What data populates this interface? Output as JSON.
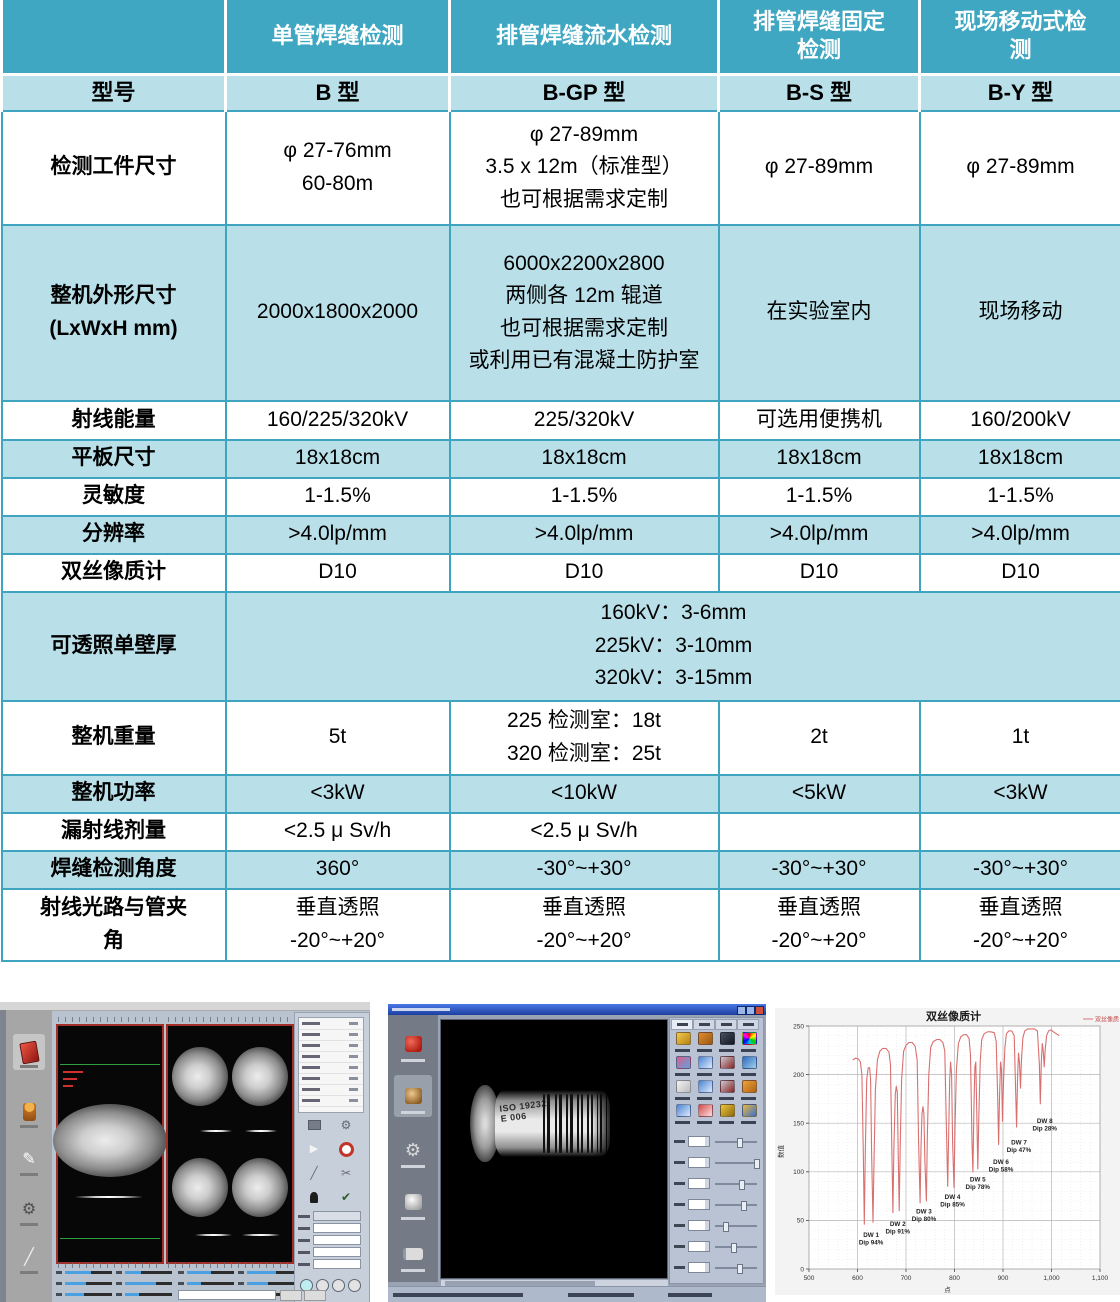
{
  "table": {
    "col_headers": [
      "",
      "单管焊缝检测",
      "排管焊缝流水检测",
      "排管焊缝固定\n检测",
      "现场移动式检\n测"
    ],
    "model_row": [
      "型号",
      "B 型",
      "B-GP 型",
      "B-S 型",
      "B-Y 型"
    ],
    "rows": [
      {
        "label": "检测工件尺寸",
        "c1": "φ 27-76mm\n60-80m",
        "c2": "φ 27-89mm\n3.5 x 12m（标准型）\n也可根据需求定制",
        "c3": "φ 27-89mm",
        "c4": "φ 27-89mm"
      },
      {
        "label": "整机外形尺寸\n(LxWxH mm)",
        "c1": "2000x1800x2000",
        "c2": "6000x2200x2800\n两侧各 12m 辊道\n也可根据需求定制\n或利用已有混凝土防护室",
        "c3": "在实验室内",
        "c4": "现场移动"
      },
      {
        "label": "射线能量",
        "c1": "160/225/320kV",
        "c2": "225/320kV",
        "c3": "可选用便携机",
        "c4": "160/200kV"
      },
      {
        "label": "平板尺寸",
        "c1": "18x18cm",
        "c2": "18x18cm",
        "c3": "18x18cm",
        "c4": "18x18cm"
      },
      {
        "label": "灵敏度",
        "c1": "1-1.5%",
        "c2": "1-1.5%",
        "c3": "1-1.5%",
        "c4": "1-1.5%"
      },
      {
        "label": "分辨率",
        "c1": ">4.0lp/mm",
        "c2": ">4.0lp/mm",
        "c3": ">4.0lp/mm",
        "c4": ">4.0lp/mm"
      },
      {
        "label": "双丝像质计",
        "c1": "D10",
        "c2": "D10",
        "c3": "D10",
        "c4": "D10"
      },
      {
        "label": "可透照单壁厚",
        "merged": "160kV：3-6mm\n225kV：3-10mm\n320kV：3-15mm"
      },
      {
        "label": "整机重量",
        "c1": "5t",
        "c2": "225 检测室：18t\n320 检测室：25t",
        "c3": "2t",
        "c4": "1t"
      },
      {
        "label": "整机功率",
        "c1": "<3kW",
        "c2": "<10kW",
        "c3": "<5kW",
        "c4": "<3kW"
      },
      {
        "label": "漏射线剂量",
        "c1": "<2.5 μ Sv/h",
        "c2": "<2.5 μ Sv/h",
        "c3": "",
        "c4": ""
      },
      {
        "label": "焊缝检测角度",
        "c1": "360°",
        "c2": "-30°~+30°",
        "c3": "-30°~+30°",
        "c4": "-30°~+30°"
      },
      {
        "label": "射线光路与管夹\n角",
        "c1": "垂直透照\n-20°~+20°",
        "c2": "垂直透照\n-20°~+20°",
        "c3": "垂直透照\n-20°~+20°",
        "c4": "垂直透照\n-20°~+20°"
      }
    ]
  },
  "viewer2": {
    "iqi_line1": "ISO 19232",
    "iqi_line2": "E 006"
  },
  "colors": {
    "header_teal": "#3fa7c2",
    "row_blue": "#b9dfe9",
    "chart_line": "#d97070"
  },
  "chart_data": {
    "type": "line",
    "title": "双丝像质计",
    "xlabel": "点",
    "ylabel": "数值",
    "legend": [
      "双丝像质"
    ],
    "legend_position": "top-right",
    "grid": true,
    "line_color": "#d97070",
    "xlim": [
      500,
      1100
    ],
    "ylim": [
      0,
      250
    ],
    "xtick_values": [
      500,
      600,
      700,
      800,
      900,
      1000,
      1100
    ],
    "xtick_labels": [
      "500",
      "600",
      "700",
      "800",
      "900",
      "1,000",
      "1,100"
    ],
    "ytick_values": [
      0,
      50,
      100,
      150,
      200,
      250
    ],
    "series": [
      {
        "name": "双丝像质",
        "points": [
          [
            590,
            215
          ],
          [
            596,
            217
          ],
          [
            602,
            216
          ],
          [
            606,
            213
          ],
          [
            609,
            200
          ],
          [
            612,
            120
          ],
          [
            614,
            46
          ],
          [
            616,
            120
          ],
          [
            619,
            195
          ],
          [
            622,
            207
          ],
          [
            625,
            207
          ],
          [
            627,
            195
          ],
          [
            629,
            120
          ],
          [
            632,
            48
          ],
          [
            634,
            110
          ],
          [
            637,
            185
          ],
          [
            641,
            215
          ],
          [
            646,
            224
          ],
          [
            652,
            227
          ],
          [
            659,
            227
          ],
          [
            665,
            223
          ],
          [
            668,
            210
          ],
          [
            671,
            120
          ],
          [
            673,
            58
          ],
          [
            675,
            125
          ],
          [
            678,
            180
          ],
          [
            680,
            188
          ],
          [
            682,
            182
          ],
          [
            684,
            120
          ],
          [
            686,
            60
          ],
          [
            688,
            125
          ],
          [
            691,
            195
          ],
          [
            695,
            224
          ],
          [
            700,
            230
          ],
          [
            706,
            233
          ],
          [
            713,
            233
          ],
          [
            719,
            229
          ],
          [
            723,
            215
          ],
          [
            726,
            130
          ],
          [
            729,
            68
          ],
          [
            731,
            125
          ],
          [
            733,
            160
          ],
          [
            735,
            167
          ],
          [
            737,
            160
          ],
          [
            739,
            110
          ],
          [
            742,
            70
          ],
          [
            744,
            135
          ],
          [
            747,
            200
          ],
          [
            751,
            228
          ],
          [
            756,
            234
          ],
          [
            763,
            236
          ],
          [
            770,
            236
          ],
          [
            776,
            233
          ],
          [
            780,
            224
          ],
          [
            783,
            150
          ],
          [
            786,
            85
          ],
          [
            788,
            140
          ],
          [
            790,
            195
          ],
          [
            792,
            213
          ],
          [
            794,
            200
          ],
          [
            796,
            130
          ],
          [
            799,
            84
          ],
          [
            801,
            145
          ],
          [
            804,
            205
          ],
          [
            808,
            232
          ],
          [
            813,
            239
          ],
          [
            819,
            241
          ],
          [
            825,
            241
          ],
          [
            830,
            237
          ],
          [
            833,
            220
          ],
          [
            836,
            130
          ],
          [
            838,
            100
          ],
          [
            840,
            165
          ],
          [
            842,
            208
          ],
          [
            844,
            213
          ],
          [
            846,
            160
          ],
          [
            848,
            103
          ],
          [
            850,
            155
          ],
          [
            853,
            213
          ],
          [
            856,
            236
          ],
          [
            861,
            242
          ],
          [
            868,
            244
          ],
          [
            875,
            244
          ],
          [
            882,
            243
          ],
          [
            886,
            234
          ],
          [
            889,
            175
          ],
          [
            891,
            128
          ],
          [
            893,
            180
          ],
          [
            895,
            213
          ],
          [
            897,
            205
          ],
          [
            899,
            152
          ],
          [
            901,
            192
          ],
          [
            904,
            228
          ],
          [
            907,
            242
          ],
          [
            912,
            245
          ],
          [
            918,
            245
          ],
          [
            923,
            240
          ],
          [
            926,
            185
          ],
          [
            928,
            146
          ],
          [
            930,
            198
          ],
          [
            932,
            222
          ],
          [
            934,
            212
          ],
          [
            936,
            186
          ],
          [
            938,
            214
          ],
          [
            941,
            238
          ],
          [
            945,
            245
          ],
          [
            951,
            247
          ],
          [
            958,
            247
          ],
          [
            965,
            247
          ],
          [
            971,
            245
          ],
          [
            975,
            210
          ],
          [
            977,
            170
          ],
          [
            979,
            213
          ],
          [
            981,
            232
          ],
          [
            983,
            224
          ],
          [
            985,
            208
          ],
          [
            987,
            226
          ],
          [
            990,
            240
          ],
          [
            994,
            245
          ],
          [
            999,
            246
          ],
          [
            1004,
            244
          ],
          [
            1010,
            242
          ],
          [
            1016,
            240
          ]
        ]
      }
    ],
    "annotations": [
      {
        "name": "DW 1",
        "dip": "Dip 94%",
        "x": 628,
        "y": 33
      },
      {
        "name": "DW 2",
        "dip": "Dip 91%",
        "x": 683,
        "y": 44
      },
      {
        "name": "DW 3",
        "dip": "Dip 80%",
        "x": 737,
        "y": 57
      },
      {
        "name": "DW 4",
        "dip": "Dip 85%",
        "x": 796,
        "y": 72
      },
      {
        "name": "DW 5",
        "dip": "Dip 78%",
        "x": 848,
        "y": 90
      },
      {
        "name": "DW 6",
        "dip": "Dip 58%",
        "x": 896,
        "y": 108
      },
      {
        "name": "DW 7",
        "dip": "Dip 47%",
        "x": 933,
        "y": 128
      },
      {
        "name": "DW 8",
        "dip": "Dip 28%",
        "x": 986,
        "y": 150
      }
    ]
  }
}
